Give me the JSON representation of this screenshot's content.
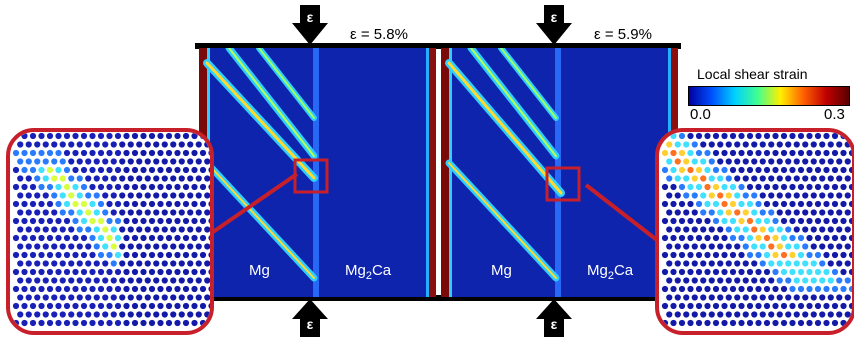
{
  "figure": {
    "loading_symbol": "ε",
    "panels": [
      {
        "strain_label": "ε = 5.8%",
        "phase_left": "Mg",
        "phase_right": "Mg2Ca"
      },
      {
        "strain_label": "ε = 5.9%",
        "phase_left": "Mg",
        "phase_right": "Mg2Ca"
      }
    ],
    "colorbar": {
      "title": "Local shear strain",
      "min_label": "0.0",
      "max_label": "0.3",
      "colors": [
        "#0000a0",
        "#0050ff",
        "#00d0ff",
        "#40ff90",
        "#fff000",
        "#ff6000",
        "#c00000",
        "#5a0000"
      ]
    },
    "highlight_color": "#c8202a"
  }
}
